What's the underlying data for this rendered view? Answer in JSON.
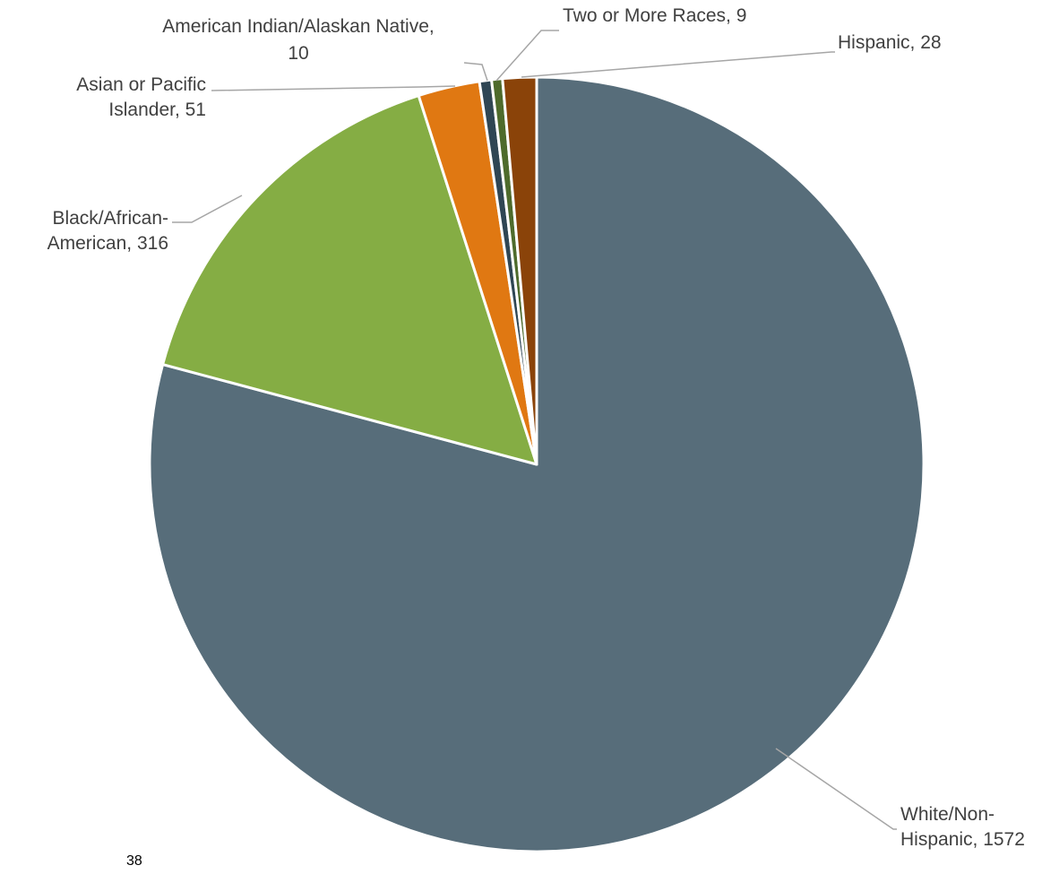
{
  "chart_data": {
    "type": "pie",
    "title": "",
    "start_angle_deg": 0,
    "direction": "clockwise",
    "slices": [
      {
        "category": "White/Non-Hispanic",
        "value": 1572,
        "label_lines": [
          "White/Non-",
          "Hispanic, 1572"
        ],
        "color": "#576d7a"
      },
      {
        "category": "Black/African-American",
        "value": 316,
        "label_lines": [
          "Black/African-",
          "American, 316"
        ],
        "color": "#85ad44"
      },
      {
        "category": "Asian or Pacific Islander",
        "value": 51,
        "label_lines": [
          "Asian or Pacific",
          "Islander, 51"
        ],
        "color": "#e07812"
      },
      {
        "category": "American Indian/Alaskan Native",
        "value": 10,
        "label_lines": [
          "American Indian/Alaskan Native,",
          "10"
        ],
        "color": "#2f4654"
      },
      {
        "category": "Two or More Races",
        "value": 9,
        "label_lines": [
          "Two or More Races, 9"
        ],
        "color": "#4e6b2c"
      },
      {
        "category": "Hispanic",
        "value": 28,
        "label_lines": [
          "Hispanic, 28"
        ],
        "color": "#8a4309"
      }
    ],
    "label_color": "#404040",
    "leader_line_color": "#a6a6a6"
  },
  "page": {
    "number": "38"
  }
}
